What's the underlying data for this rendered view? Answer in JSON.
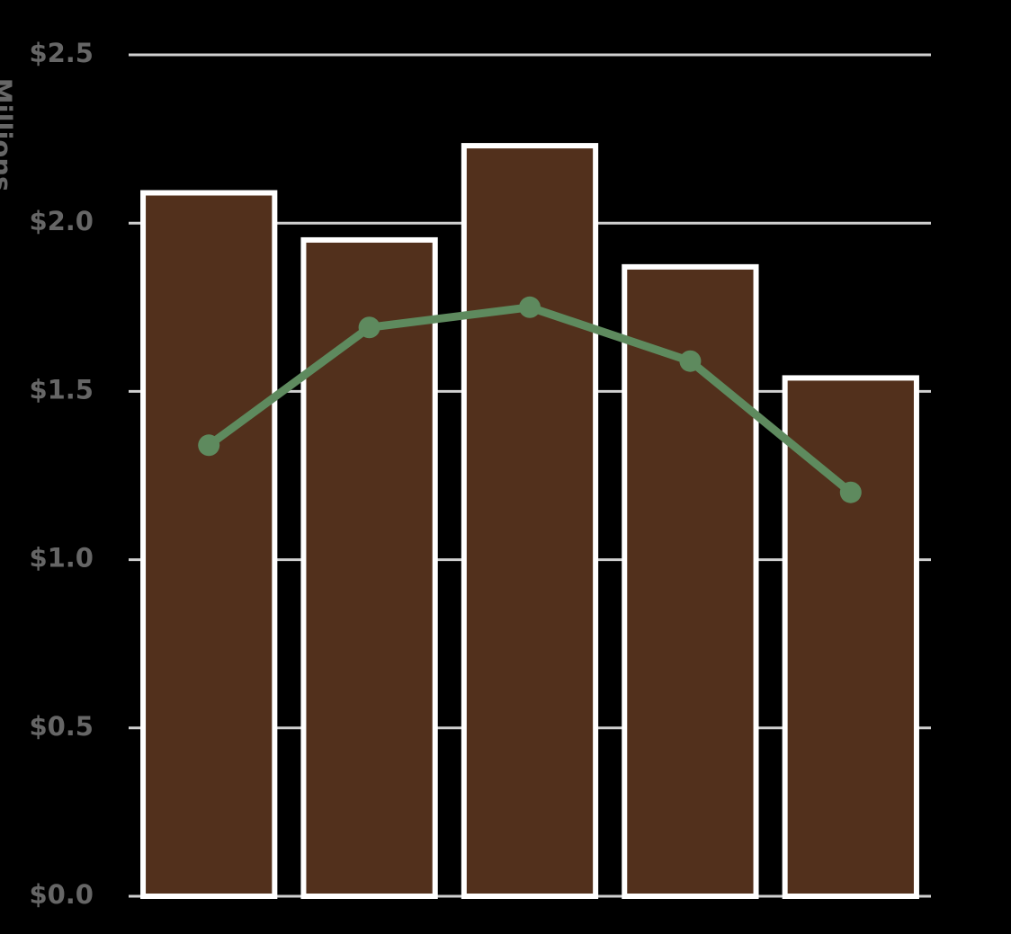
{
  "chart_data": {
    "type": "combo",
    "y_label": "Millions",
    "categories": [
      null,
      null,
      null,
      null,
      null
    ],
    "series": [
      {
        "type": "bar",
        "color": "#52301c",
        "values": [
          2.09,
          1.95,
          2.23,
          1.87,
          1.54
        ]
      },
      {
        "type": "line",
        "color": "#5e8a5e",
        "values": [
          1.34,
          1.69,
          1.75,
          1.59,
          1.2
        ]
      }
    ],
    "ylim": [
      0,
      2.5
    ],
    "yticks": [
      {
        "value": 0,
        "label": "$0.0"
      },
      {
        "value": 0.5,
        "label": "$0.5"
      },
      {
        "value": 1,
        "label": "$1.0"
      },
      {
        "value": 1.5,
        "label": "$1.5"
      },
      {
        "value": 2,
        "label": "$2.0"
      },
      {
        "value": 2.5,
        "label": "$2.5"
      }
    ],
    "grid": true
  }
}
